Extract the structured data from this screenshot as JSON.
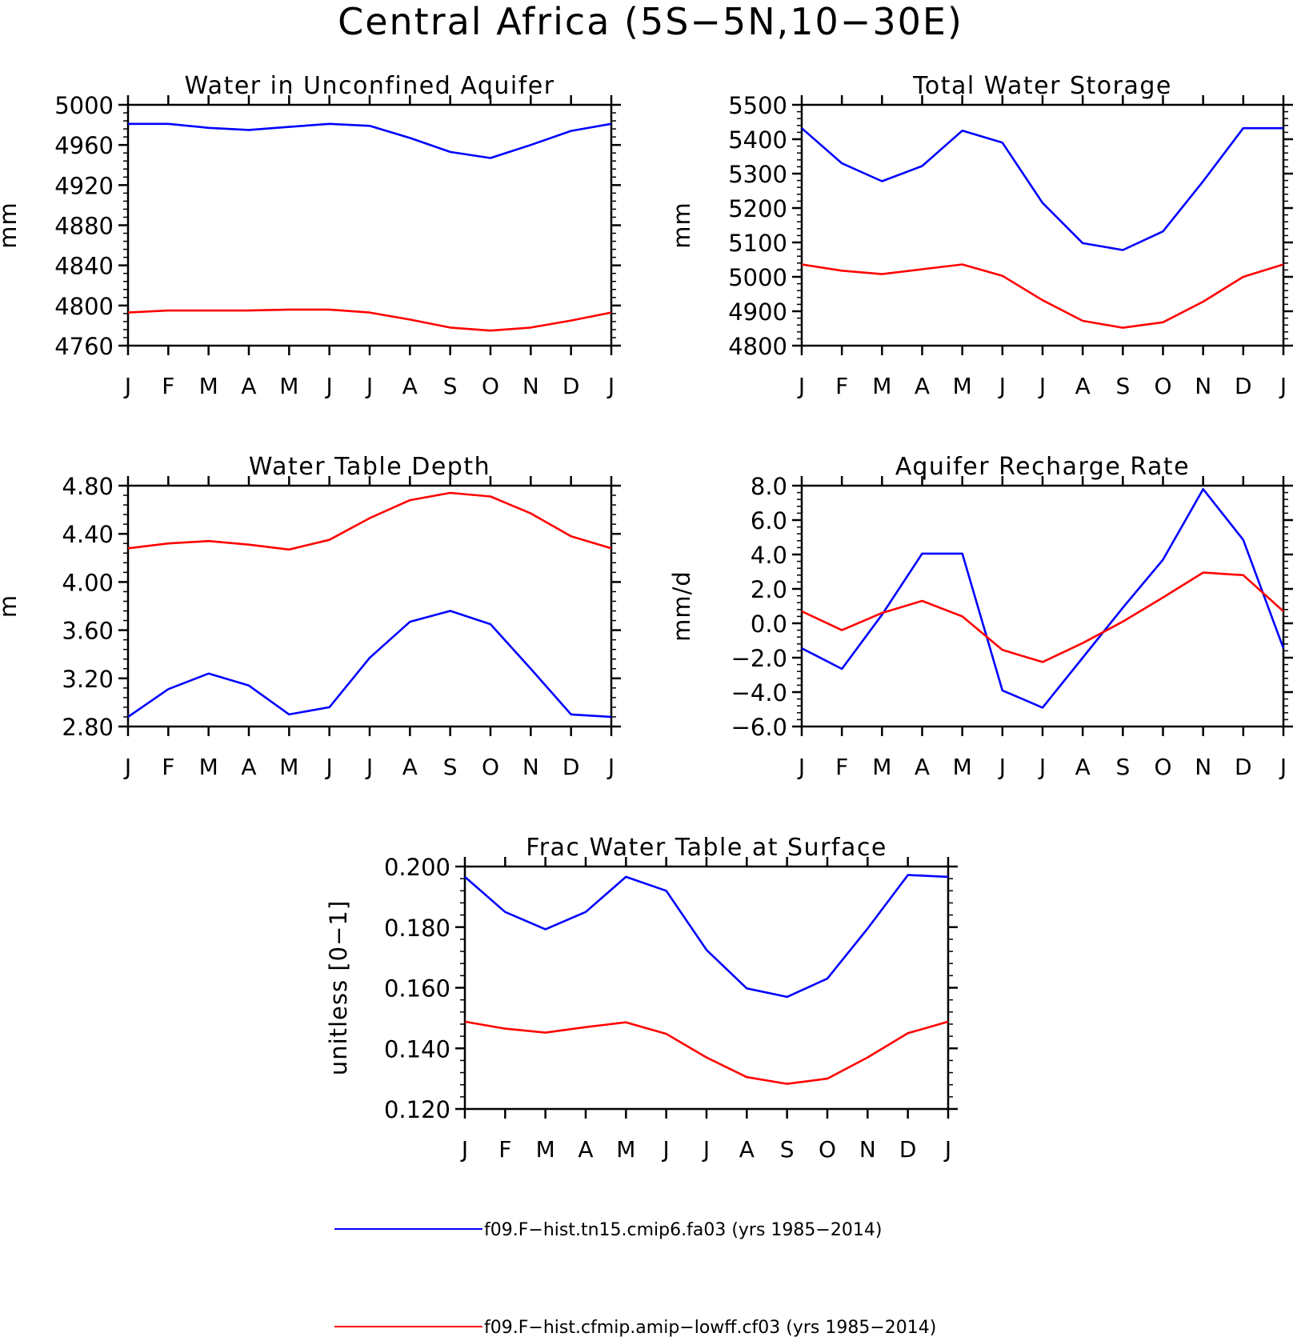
{
  "figure_title": "Central Africa (5S−5N,10−30E)",
  "colors": {
    "series_1": "#0000ff",
    "series_2": "#ff0000",
    "axes": "#000000"
  },
  "legend": {
    "position": "bottom",
    "entries": [
      {
        "label": "f09.F−hist.tn15.cmip6.fa03 (yrs 1985−2014)",
        "color": "#0000ff"
      },
      {
        "label": "f09.F−hist.cfmip.amip−lowff.cf03 (yrs 1985−2014)",
        "color": "#ff0000"
      }
    ]
  },
  "chart_data": [
    {
      "type": "line",
      "title": "Water in Unconfined Aquifer",
      "ylabel": "mm",
      "xlabel": "",
      "x": [
        "J",
        "F",
        "M",
        "A",
        "M",
        "J",
        "J",
        "A",
        "S",
        "O",
        "N",
        "D",
        "J"
      ],
      "ylim": [
        4760,
        5000
      ],
      "yticks": [
        "4760",
        "4800",
        "4840",
        "4880",
        "4920",
        "4960",
        "5000"
      ],
      "grid": false,
      "series": [
        {
          "color": "#0000ff",
          "values": [
            4981,
            4981,
            4977,
            4975,
            4978,
            4981,
            4979,
            4967,
            4953,
            4947,
            4960,
            4974,
            4981
          ]
        },
        {
          "color": "#ff0000",
          "values": [
            4793,
            4795,
            4795,
            4795,
            4796,
            4796,
            4793,
            4786,
            4778,
            4775,
            4778,
            4785,
            4793
          ]
        }
      ]
    },
    {
      "type": "line",
      "title": "Total Water Storage",
      "ylabel": "mm",
      "xlabel": "",
      "x": [
        "J",
        "F",
        "M",
        "A",
        "M",
        "J",
        "J",
        "A",
        "S",
        "O",
        "N",
        "D",
        "J"
      ],
      "ylim": [
        4800,
        5500
      ],
      "yticks": [
        "4800",
        "4900",
        "5000",
        "5100",
        "5200",
        "5300",
        "5400",
        "5500"
      ],
      "grid": false,
      "series": [
        {
          "color": "#0000ff",
          "values": [
            5432,
            5330,
            5278,
            5322,
            5425,
            5390,
            5215,
            5098,
            5078,
            5132,
            5278,
            5432,
            5432
          ]
        },
        {
          "color": "#ff0000",
          "values": [
            5036,
            5018,
            5008,
            5022,
            5036,
            5003,
            4932,
            4872,
            4852,
            4868,
            4928,
            5000,
            5036
          ]
        }
      ]
    },
    {
      "type": "line",
      "title": "Water Table Depth",
      "ylabel": "m",
      "xlabel": "",
      "x": [
        "J",
        "F",
        "M",
        "A",
        "M",
        "J",
        "J",
        "A",
        "S",
        "O",
        "N",
        "D",
        "J"
      ],
      "ylim": [
        2.8,
        4.8
      ],
      "yticks": [
        "2.80",
        "3.20",
        "3.60",
        "4.00",
        "4.40",
        "4.80"
      ],
      "grid": false,
      "series": [
        {
          "color": "#0000ff",
          "values": [
            2.88,
            3.11,
            3.24,
            3.14,
            2.9,
            2.96,
            3.37,
            3.67,
            3.76,
            3.65,
            3.28,
            2.9,
            2.88
          ]
        },
        {
          "color": "#ff0000",
          "values": [
            4.28,
            4.32,
            4.34,
            4.31,
            4.27,
            4.35,
            4.53,
            4.68,
            4.74,
            4.71,
            4.57,
            4.38,
            4.28
          ]
        }
      ]
    },
    {
      "type": "line",
      "title": "Aquifer Recharge Rate",
      "ylabel": "mm/d",
      "xlabel": "",
      "x": [
        "J",
        "F",
        "M",
        "A",
        "M",
        "J",
        "J",
        "A",
        "S",
        "O",
        "N",
        "D",
        "J"
      ],
      "ylim": [
        -6,
        8
      ],
      "yticks": [
        "−6.0",
        "−4.0",
        "−2.0",
        "0.0",
        "2.0",
        "4.0",
        "6.0",
        "8.0"
      ],
      "grid": false,
      "series": [
        {
          "color": "#0000ff",
          "values": [
            -1.45,
            -2.65,
            0.5,
            4.05,
            4.05,
            -3.9,
            -4.9,
            -2.0,
            0.9,
            3.7,
            7.8,
            4.85,
            -1.45
          ]
        },
        {
          "color": "#ff0000",
          "values": [
            0.7,
            -0.4,
            0.6,
            1.3,
            0.4,
            -1.55,
            -2.25,
            -1.15,
            0.1,
            1.5,
            2.95,
            2.8,
            0.7
          ]
        }
      ]
    },
    {
      "type": "line",
      "title": "Frac Water Table at Surface",
      "ylabel": "unitless [0−1]",
      "xlabel": "",
      "x": [
        "J",
        "F",
        "M",
        "A",
        "M",
        "J",
        "J",
        "A",
        "S",
        "O",
        "N",
        "D",
        "J"
      ],
      "ylim": [
        0.12,
        0.2
      ],
      "yticks": [
        "0.120",
        "0.140",
        "0.160",
        "0.180",
        "0.200"
      ],
      "grid": false,
      "series": [
        {
          "color": "#0000ff",
          "values": [
            0.1966,
            0.185,
            0.1793,
            0.185,
            0.1966,
            0.192,
            0.1725,
            0.1598,
            0.157,
            0.163,
            0.1795,
            0.1972,
            0.1966
          ]
        },
        {
          "color": "#ff0000",
          "values": [
            0.1488,
            0.1465,
            0.1452,
            0.147,
            0.1486,
            0.1448,
            0.137,
            0.1305,
            0.1283,
            0.13,
            0.137,
            0.145,
            0.1488
          ]
        }
      ]
    }
  ]
}
